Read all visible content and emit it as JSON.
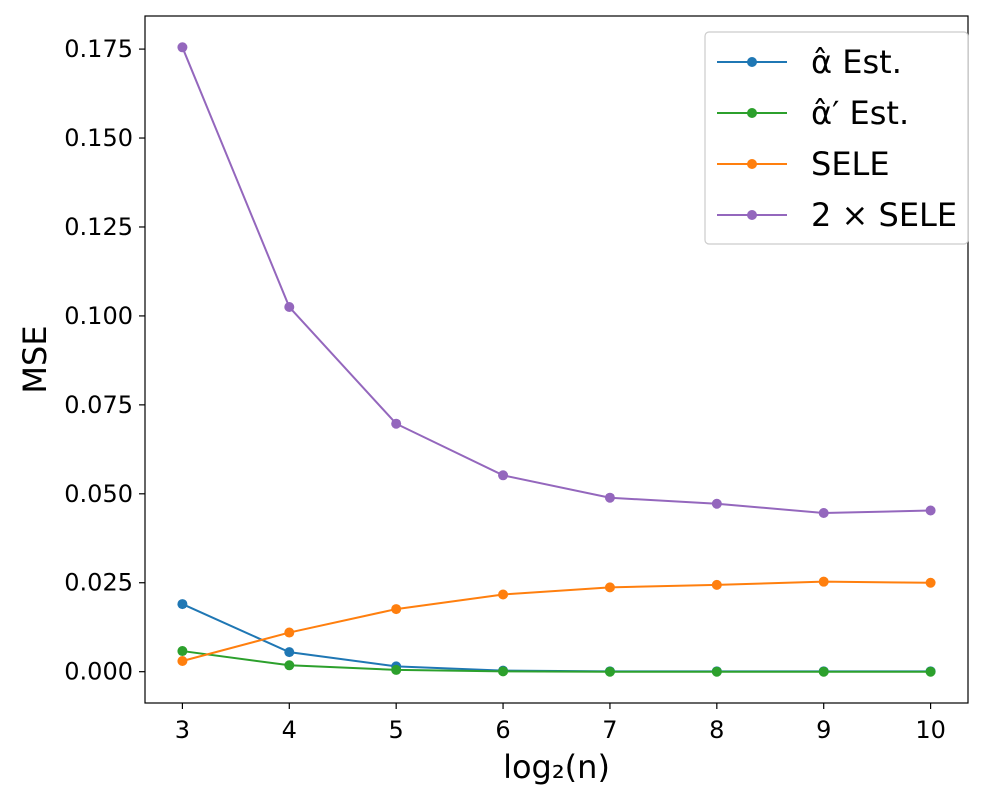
{
  "chart_data": {
    "type": "line",
    "xlabel": "log₂(n)",
    "ylabel": "MSE",
    "x": [
      3,
      4,
      5,
      6,
      7,
      8,
      9,
      10
    ],
    "xlim": [
      2.65,
      10.35
    ],
    "ylim": [
      -0.0088,
      0.1843
    ],
    "xticks": [
      3,
      4,
      5,
      6,
      7,
      8,
      9,
      10
    ],
    "xtick_labels": [
      "3",
      "4",
      "5",
      "6",
      "7",
      "8",
      "9",
      "10"
    ],
    "yticks": [
      0.0,
      0.025,
      0.05,
      0.075,
      0.1,
      0.125,
      0.15,
      0.175
    ],
    "ytick_labels": [
      "0.000",
      "0.025",
      "0.050",
      "0.075",
      "0.100",
      "0.125",
      "0.150",
      "0.175"
    ],
    "grid": false,
    "legend_position": "top-right",
    "series": [
      {
        "name": "α̂ Est.",
        "color": "#1f77b4",
        "values": [
          0.019,
          0.0055,
          0.0015,
          0.0003,
          0.0001,
          0.0001,
          0.0001,
          0.0001
        ]
      },
      {
        "name": "α̂′ Est.",
        "color": "#2ca02c",
        "values": [
          0.0058,
          0.0018,
          0.0005,
          0.0001,
          0.0,
          0.0,
          0.0,
          0.0
        ]
      },
      {
        "name": "SELE",
        "color": "#ff7f0e",
        "values": [
          0.003,
          0.011,
          0.0176,
          0.0217,
          0.0237,
          0.0244,
          0.0253,
          0.025
        ]
      },
      {
        "name": "2 × SELE",
        "color": "#9467bd",
        "values": [
          0.1755,
          0.1025,
          0.0697,
          0.0552,
          0.0489,
          0.0472,
          0.0446,
          0.0453
        ]
      }
    ]
  }
}
